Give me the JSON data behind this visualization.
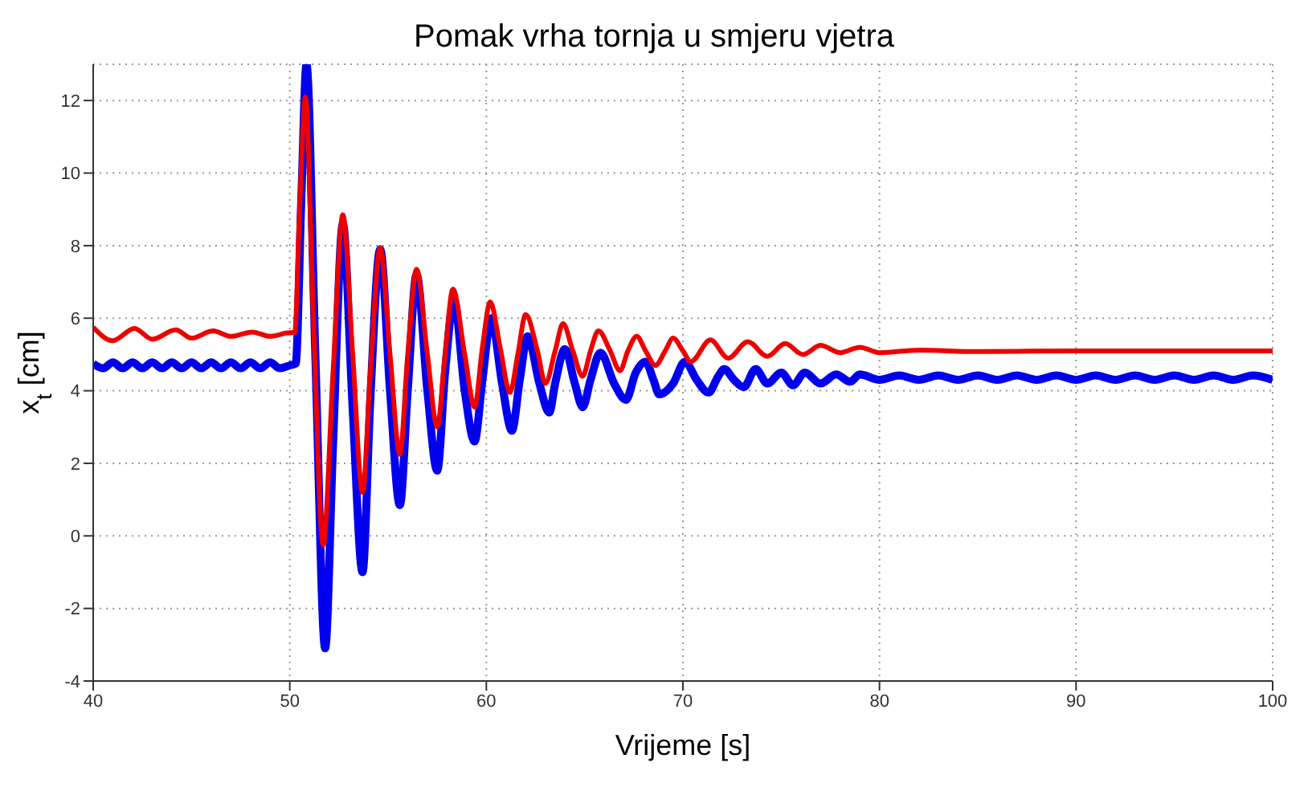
{
  "chart_data": {
    "type": "line",
    "title": "Pomak vrha tornja u smjeru vjetra",
    "xlabel": "Vrijeme [s]",
    "ylabel": "x$_{t}$ [cm]",
    "xlim": [
      40,
      100
    ],
    "xticks": [
      40,
      50,
      60,
      70,
      80,
      90,
      100
    ],
    "ylim": [
      -4,
      13
    ],
    "yticks": [
      -4,
      -2,
      0,
      2,
      4,
      6,
      8,
      10,
      12
    ],
    "grid": true,
    "legend": false,
    "marker": "none",
    "series": [
      {
        "color": "#0000ee",
        "x": [
          40,
          40.5,
          41,
          41.5,
          42,
          42.5,
          43,
          43.5,
          44,
          44.5,
          45,
          45.5,
          46,
          46.5,
          47,
          47.5,
          48,
          48.5,
          49,
          49.5,
          50,
          50.3,
          50.6,
          50.85,
          51.3,
          51.8,
          52.2,
          52.7,
          53.2,
          53.7,
          54.1,
          54.6,
          55.1,
          55.6,
          56,
          56.45,
          57,
          57.5,
          57.9,
          58.35,
          58.9,
          59.4,
          59.8,
          60.25,
          60.8,
          61.3,
          61.7,
          62.1,
          62.7,
          63.2,
          63.5,
          64,
          64.5,
          64.9,
          65.3,
          65.8,
          66.5,
          67.1,
          67.6,
          68.1,
          68.5,
          68.8,
          69.5,
          70.1,
          70.7,
          71.3,
          71.8,
          72.1,
          72.6,
          73.1,
          73.7,
          74.3,
          75,
          75.6,
          76.2,
          77,
          77.8,
          78.5,
          79,
          80,
          81,
          82,
          83,
          84,
          85,
          86,
          87,
          88,
          89,
          90,
          91,
          92,
          93,
          94,
          95,
          96,
          97,
          98,
          99,
          100
        ],
        "values": [
          4.75,
          4.62,
          4.78,
          4.62,
          4.78,
          4.62,
          4.78,
          4.62,
          4.78,
          4.62,
          4.78,
          4.62,
          4.78,
          4.62,
          4.78,
          4.62,
          4.78,
          4.62,
          4.78,
          4.62,
          4.7,
          4.75,
          9.5,
          13,
          5,
          -3.1,
          2.5,
          8.6,
          3.5,
          -1,
          3.8,
          7.9,
          4,
          0.85,
          4,
          7.2,
          4,
          1.8,
          4.5,
          6.5,
          4,
          2.6,
          4.3,
          6,
          4.2,
          2.9,
          4.3,
          5.5,
          4.2,
          3.4,
          4.2,
          5.15,
          4.2,
          3.55,
          4.3,
          5.05,
          4.2,
          3.75,
          4.5,
          4.8,
          4.3,
          3.9,
          4.2,
          4.8,
          4.3,
          3.95,
          4.4,
          4.6,
          4.3,
          4.1,
          4.6,
          4.2,
          4.5,
          4.15,
          4.5,
          4.2,
          4.45,
          4.25,
          4.45,
          4.3,
          4.42,
          4.3,
          4.42,
          4.3,
          4.42,
          4.3,
          4.42,
          4.3,
          4.42,
          4.3,
          4.42,
          4.3,
          4.42,
          4.3,
          4.42,
          4.3,
          4.42,
          4.3,
          4.42,
          4.3
        ]
      },
      {
        "color": "#ee0000",
        "x": [
          40,
          41,
          42.1,
          43,
          44.2,
          45,
          46.1,
          47,
          48.1,
          49,
          50,
          50.25,
          50.5,
          50.8,
          51.2,
          51.7,
          52.2,
          52.7,
          53.2,
          53.7,
          54.1,
          54.6,
          55.1,
          55.6,
          56,
          56.45,
          57,
          57.5,
          57.9,
          58.3,
          58.9,
          59.4,
          59.8,
          60.2,
          60.7,
          61.2,
          61.6,
          62,
          62.6,
          63,
          63.5,
          63.9,
          64.4,
          64.9,
          65.3,
          65.7,
          66.3,
          66.8,
          67.2,
          67.65,
          68.1,
          68.6,
          69.1,
          69.5,
          70,
          70.4,
          71.4,
          72.3,
          73.3,
          74.3,
          75.2,
          76.1,
          77,
          78,
          79,
          80,
          82,
          85,
          90,
          95,
          100
        ],
        "values": [
          5.75,
          5.38,
          5.72,
          5.42,
          5.68,
          5.45,
          5.65,
          5.5,
          5.62,
          5.5,
          5.6,
          5.6,
          9,
          12.1,
          6,
          -0.25,
          4.5,
          8.85,
          5,
          1.2,
          4.5,
          7.95,
          5,
          2.25,
          5,
          7.35,
          5,
          3,
          5,
          6.8,
          5,
          3.55,
          5.2,
          6.45,
          5.2,
          3.95,
          5,
          6.1,
          5.1,
          4.2,
          5.1,
          5.85,
          5.1,
          4.4,
          5.1,
          5.65,
          5.1,
          4.55,
          5.1,
          5.5,
          5.1,
          4.7,
          5.1,
          5.45,
          5.1,
          4.8,
          5.4,
          4.9,
          5.35,
          4.95,
          5.3,
          5,
          5.25,
          5.05,
          5.2,
          5.05,
          5.12,
          5.08,
          5.1,
          5.1,
          5.1
        ]
      }
    ]
  }
}
